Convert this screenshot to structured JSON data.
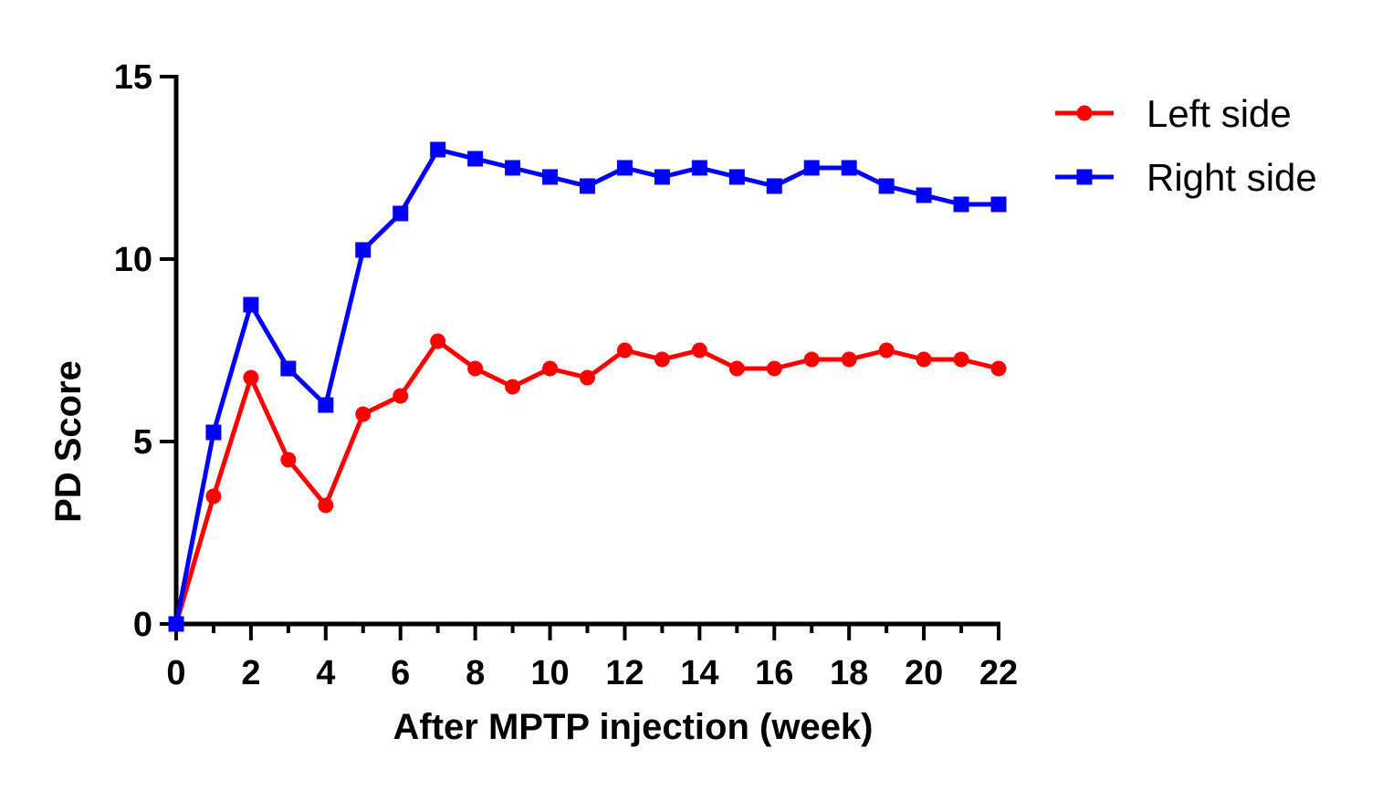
{
  "chart_data": {
    "type": "line",
    "xlabel": "After MPTP injection (week)",
    "ylabel": "PD Score",
    "xlim": [
      0,
      22
    ],
    "ylim": [
      0,
      15
    ],
    "x_ticks": [
      0,
      2,
      4,
      6,
      8,
      10,
      12,
      14,
      16,
      18,
      20,
      22
    ],
    "y_ticks": [
      0,
      5,
      10,
      15
    ],
    "x_tick_labels": [
      "0",
      "2",
      "4",
      "6",
      "8",
      "10",
      "12",
      "14",
      "16",
      "18",
      "20",
      "22"
    ],
    "y_tick_labels": [
      "0",
      "5",
      "10",
      "15"
    ],
    "x": [
      0,
      1,
      2,
      3,
      4,
      5,
      6,
      7,
      8,
      9,
      10,
      11,
      12,
      13,
      14,
      15,
      16,
      17,
      18,
      19,
      20,
      21,
      22
    ],
    "series": [
      {
        "name": "Left side",
        "color": "#ff0000",
        "marker": "circle",
        "values": [
          0,
          3.5,
          6.75,
          4.5,
          3.25,
          5.75,
          6.25,
          7.75,
          7,
          6.5,
          7,
          6.75,
          7.5,
          7.25,
          7.5,
          7,
          7,
          7.25,
          7.25,
          7.5,
          7.25,
          7.25,
          7
        ]
      },
      {
        "name": "Right side",
        "color": "#0000ff",
        "marker": "square",
        "values": [
          0,
          5.25,
          8.75,
          7,
          6,
          10.25,
          11.25,
          13,
          12.75,
          12.5,
          12.25,
          12,
          12.5,
          12.25,
          12.5,
          12.25,
          12,
          12.5,
          12.5,
          12,
          11.75,
          11.5,
          11.5
        ]
      }
    ],
    "grid": false,
    "legend_position": "top-right"
  }
}
